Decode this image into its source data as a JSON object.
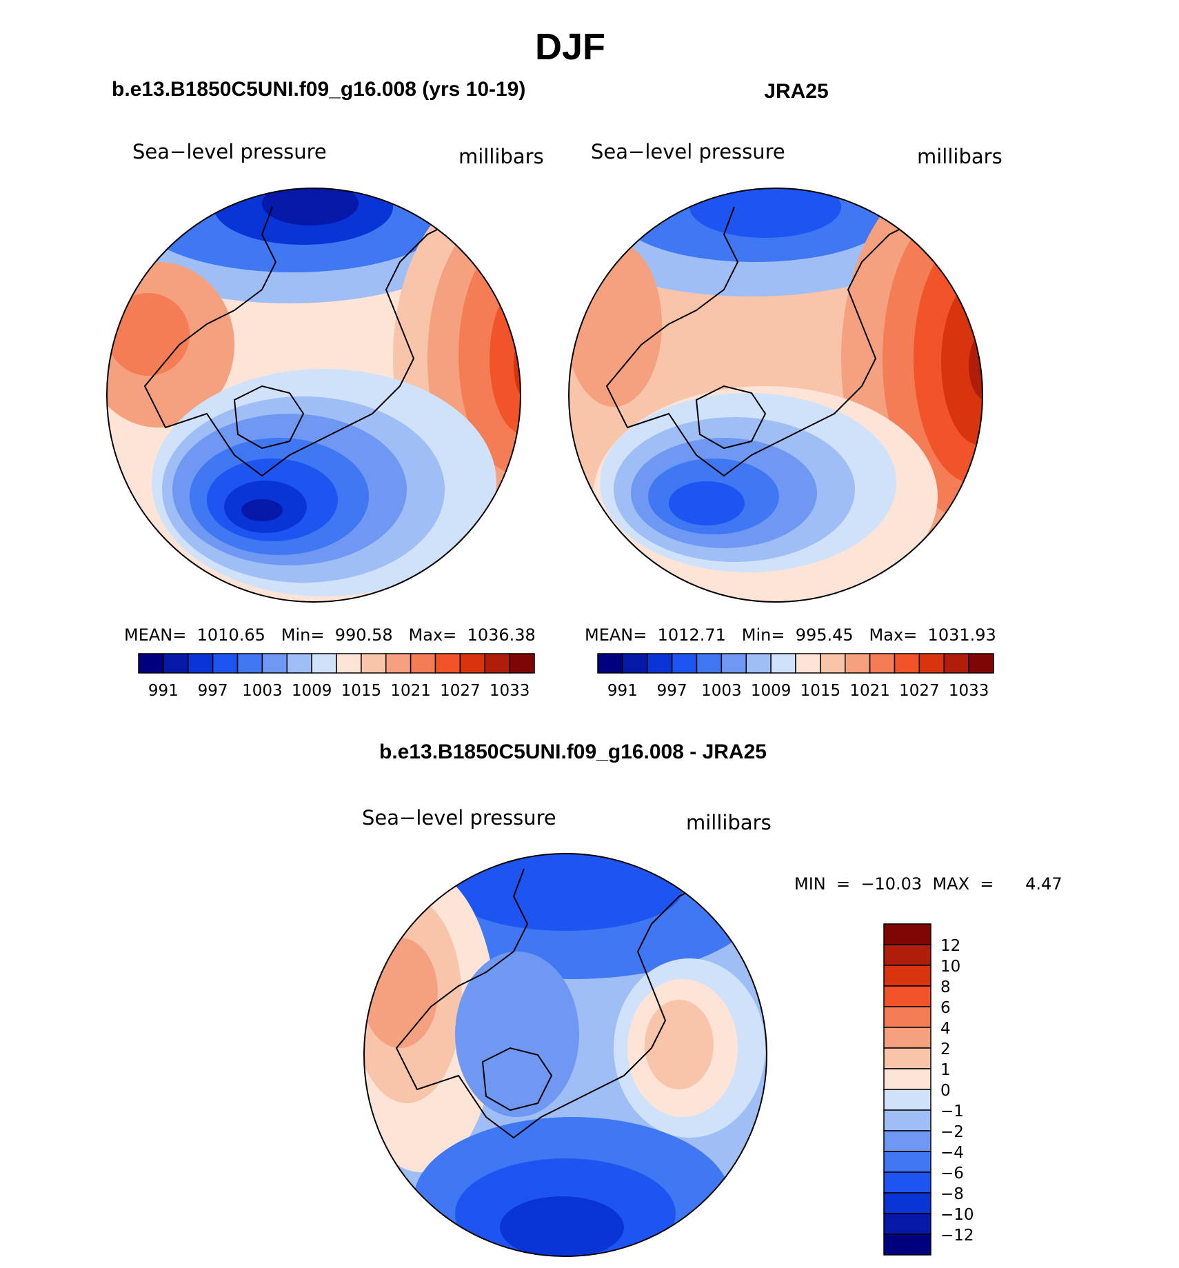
{
  "main_title": "DJF",
  "panels": [
    {
      "id": "model",
      "case_title": "b.e13.B1850C5UNI.f09_g16.008 (yrs 10-19)",
      "variable": "Sea−level pressure",
      "units": "millibars",
      "stats": "MEAN=  1010.65   Min=  990.58   Max=  1036.38",
      "legend_labels": [
        "991",
        "997",
        "1003",
        "1009",
        "1015",
        "1021",
        "1027",
        "1033"
      ]
    },
    {
      "id": "obs",
      "case_title": "JRA25",
      "variable": "Sea−level pressure",
      "units": "millibars",
      "stats": "MEAN=  1012.71   Min=  995.45   Max=  1031.93",
      "legend_labels": [
        "991",
        "997",
        "1003",
        "1009",
        "1015",
        "1021",
        "1027",
        "1033"
      ]
    }
  ],
  "diff_panel": {
    "title": "b.e13.B1850C5UNI.f09_g16.008 - JRA25",
    "variable": "Sea−level pressure",
    "units": "millibars",
    "stats": "MIN  =  −10.03  MAX  =      4.47",
    "legend_labels": [
      "12",
      "10",
      "8",
      "6",
      "4",
      "2",
      "1",
      "0",
      "−1",
      "−2",
      "−4",
      "−6",
      "−8",
      "−10",
      "−12"
    ]
  },
  "colors": {
    "abs_palette": [
      "#00007f",
      "#0518a8",
      "#0a35d6",
      "#1e55f0",
      "#3f78f2",
      "#6f98f2",
      "#9fbef6",
      "#d0e2fa",
      "#fde4d6",
      "#f8c4aa",
      "#f5a07f",
      "#f47d55",
      "#f05428",
      "#d8340d",
      "#b01e0b",
      "#800505"
    ],
    "diff_palette": [
      "#00007f",
      "#0518a8",
      "#0a35d6",
      "#1e55f0",
      "#3f78f2",
      "#6f98f2",
      "#9fbef6",
      "#d0e2fa",
      "#fde4d6",
      "#f8c4aa",
      "#f5a07f",
      "#f47d55",
      "#f05428",
      "#d8340d",
      "#b01e0b",
      "#800505"
    ]
  }
}
